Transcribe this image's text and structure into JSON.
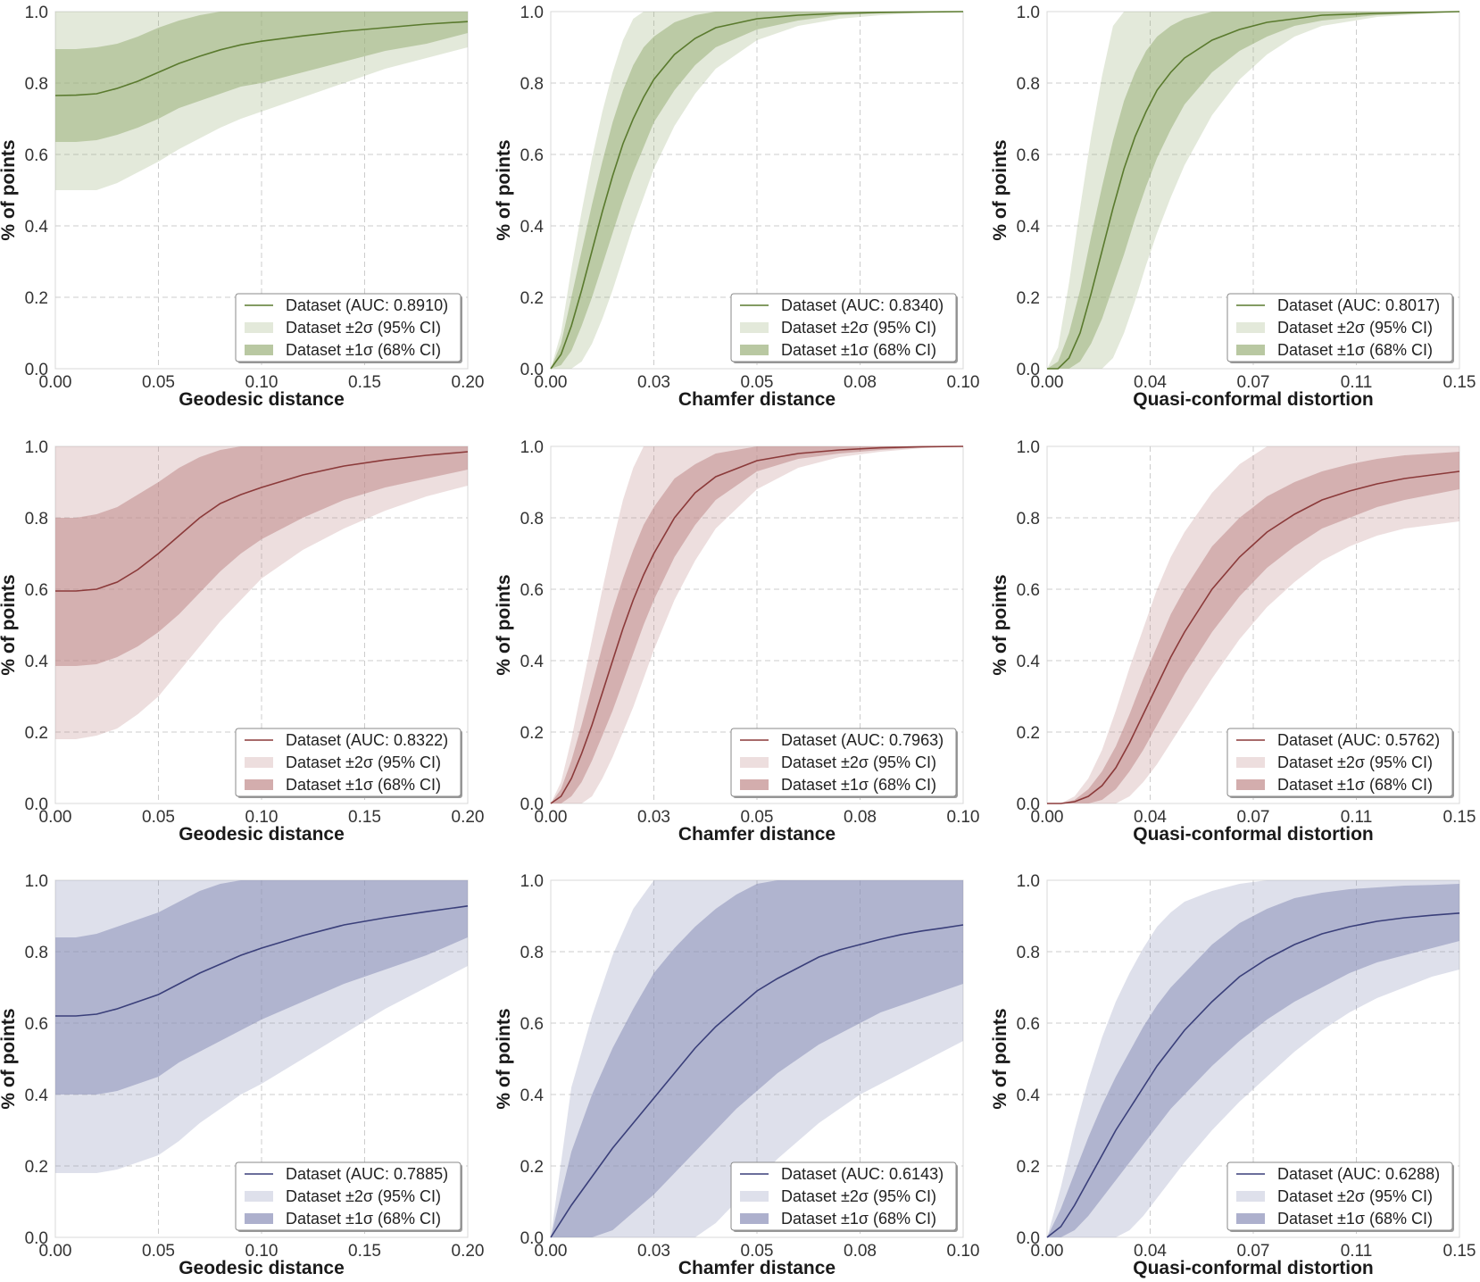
{
  "figure": {
    "ylabel": "% of points",
    "legend_labels": [
      "Dataset (AUC: {auc})",
      "Dataset ±2σ (95% CI)",
      "Dataset ±1σ (68% CI)"
    ],
    "legend_position": "lower-right",
    "grid": true
  },
  "rows": [
    {
      "color": "#5a7a2e",
      "band_color": "#9bb07a"
    },
    {
      "color": "#8b3a3a",
      "band_color": "#c08a8a"
    },
    {
      "color": "#3a3f7a",
      "band_color": "#8a8fb8"
    }
  ],
  "chart_data": [
    {
      "type": "area",
      "row": 0,
      "col": 0,
      "xlabel": "Geodesic distance",
      "xlim": [
        0,
        0.2
      ],
      "ylim": [
        0,
        1
      ],
      "xticks": [
        "0.00",
        "0.05",
        "0.10",
        "0.15",
        "0.20"
      ],
      "yticks": [
        "0.0",
        "0.2",
        "0.4",
        "0.6",
        "0.8",
        "1.0"
      ],
      "auc": "0.8910",
      "x": [
        0,
        0.01,
        0.02,
        0.03,
        0.04,
        0.05,
        0.06,
        0.07,
        0.08,
        0.09,
        0.1,
        0.12,
        0.14,
        0.16,
        0.18,
        0.2
      ],
      "mean": [
        0.765,
        0.766,
        0.77,
        0.785,
        0.805,
        0.83,
        0.855,
        0.875,
        0.893,
        0.907,
        0.917,
        0.932,
        0.945,
        0.955,
        0.965,
        0.972
      ],
      "sd1_lower": [
        0.635,
        0.635,
        0.64,
        0.655,
        0.675,
        0.7,
        0.73,
        0.75,
        0.77,
        0.79,
        0.8,
        0.83,
        0.86,
        0.89,
        0.91,
        0.94
      ],
      "sd1_upper": [
        0.895,
        0.895,
        0.9,
        0.91,
        0.93,
        0.955,
        0.975,
        0.99,
        1.0,
        1.0,
        1.0,
        1.0,
        1.0,
        1.0,
        1.0,
        1.0
      ],
      "sd2_lower": [
        0.5,
        0.5,
        0.5,
        0.52,
        0.55,
        0.58,
        0.615,
        0.645,
        0.675,
        0.7,
        0.72,
        0.76,
        0.8,
        0.84,
        0.87,
        0.9
      ],
      "sd2_upper": [
        1,
        1,
        1,
        1,
        1,
        1,
        1,
        1,
        1,
        1,
        1,
        1,
        1,
        1,
        1,
        1
      ]
    },
    {
      "type": "area",
      "row": 0,
      "col": 1,
      "xlabel": "Chamfer distance",
      "xlim": [
        0,
        0.1
      ],
      "ylim": [
        0,
        1
      ],
      "xticks": [
        "0.00",
        "0.03",
        "0.05",
        "0.08",
        "0.10"
      ],
      "yticks": [
        "0.0",
        "0.2",
        "0.4",
        "0.6",
        "0.8",
        "1.0"
      ],
      "auc": "0.8340",
      "x": [
        0,
        0.0025,
        0.005,
        0.0075,
        0.01,
        0.0125,
        0.015,
        0.0175,
        0.02,
        0.0225,
        0.025,
        0.03,
        0.035,
        0.04,
        0.05,
        0.06,
        0.07,
        0.08,
        0.09,
        0.1
      ],
      "mean": [
        0,
        0.04,
        0.12,
        0.22,
        0.33,
        0.44,
        0.54,
        0.63,
        0.7,
        0.76,
        0.81,
        0.88,
        0.925,
        0.955,
        0.98,
        0.99,
        0.995,
        0.998,
        0.999,
        1.0
      ],
      "sd1_lower": [
        0,
        0.01,
        0.05,
        0.12,
        0.2,
        0.29,
        0.38,
        0.47,
        0.55,
        0.62,
        0.69,
        0.78,
        0.85,
        0.9,
        0.95,
        0.975,
        0.99,
        0.995,
        0.998,
        1.0
      ],
      "sd1_upper": [
        0,
        0.07,
        0.2,
        0.33,
        0.46,
        0.58,
        0.69,
        0.78,
        0.85,
        0.9,
        0.93,
        0.97,
        0.99,
        1.0,
        1.0,
        1.0,
        1.0,
        1.0,
        1.0,
        1.0
      ],
      "sd2_lower": [
        0,
        0.0,
        0.0,
        0.02,
        0.07,
        0.14,
        0.22,
        0.31,
        0.4,
        0.48,
        0.56,
        0.68,
        0.77,
        0.84,
        0.92,
        0.96,
        0.98,
        0.99,
        0.997,
        1.0
      ],
      "sd2_upper": [
        0,
        0.1,
        0.28,
        0.44,
        0.59,
        0.72,
        0.83,
        0.92,
        0.98,
        1.0,
        1.0,
        1.0,
        1.0,
        1.0,
        1.0,
        1.0,
        1.0,
        1.0,
        1.0,
        1.0
      ]
    },
    {
      "type": "area",
      "row": 0,
      "col": 2,
      "xlabel": "Quasi-conformal distortion",
      "xlim": [
        0,
        0.15
      ],
      "ylim": [
        0,
        1
      ],
      "xticks": [
        "0.00",
        "0.04",
        "0.07",
        "0.11",
        "0.15"
      ],
      "yticks": [
        "0.0",
        "0.2",
        "0.4",
        "0.6",
        "0.8",
        "1.0"
      ],
      "auc": "0.8017",
      "x": [
        0,
        0.004,
        0.008,
        0.012,
        0.016,
        0.02,
        0.024,
        0.028,
        0.032,
        0.036,
        0.04,
        0.045,
        0.05,
        0.06,
        0.07,
        0.08,
        0.09,
        0.1,
        0.12,
        0.15
      ],
      "mean": [
        0,
        0.0,
        0.03,
        0.1,
        0.21,
        0.33,
        0.45,
        0.56,
        0.65,
        0.72,
        0.78,
        0.83,
        0.87,
        0.92,
        0.95,
        0.97,
        0.98,
        0.99,
        0.995,
        1.0
      ],
      "sd1_lower": [
        0,
        0,
        0,
        0.02,
        0.07,
        0.14,
        0.23,
        0.32,
        0.42,
        0.51,
        0.59,
        0.67,
        0.74,
        0.83,
        0.89,
        0.93,
        0.96,
        0.975,
        0.99,
        1.0
      ],
      "sd1_upper": [
        0,
        0.02,
        0.1,
        0.22,
        0.37,
        0.51,
        0.64,
        0.75,
        0.83,
        0.89,
        0.93,
        0.96,
        0.98,
        1.0,
        1.0,
        1.0,
        1.0,
        1.0,
        1.0,
        1.0
      ],
      "sd2_lower": [
        0,
        0,
        0,
        0,
        0,
        0,
        0.03,
        0.1,
        0.19,
        0.29,
        0.38,
        0.48,
        0.57,
        0.71,
        0.81,
        0.88,
        0.93,
        0.96,
        0.985,
        1.0
      ],
      "sd2_upper": [
        0,
        0.06,
        0.24,
        0.45,
        0.65,
        0.82,
        0.96,
        1.0,
        1.0,
        1.0,
        1.0,
        1.0,
        1.0,
        1.0,
        1.0,
        1.0,
        1.0,
        1.0,
        1.0,
        1.0
      ]
    },
    {
      "type": "area",
      "row": 1,
      "col": 0,
      "xlabel": "Geodesic distance",
      "xlim": [
        0,
        0.2
      ],
      "ylim": [
        0,
        1
      ],
      "xticks": [
        "0.00",
        "0.05",
        "0.10",
        "0.15",
        "0.20"
      ],
      "yticks": [
        "0.0",
        "0.2",
        "0.4",
        "0.6",
        "0.8",
        "1.0"
      ],
      "auc": "0.8322",
      "x": [
        0,
        0.01,
        0.02,
        0.03,
        0.04,
        0.05,
        0.06,
        0.07,
        0.08,
        0.09,
        0.1,
        0.12,
        0.14,
        0.16,
        0.18,
        0.2
      ],
      "mean": [
        0.595,
        0.595,
        0.6,
        0.62,
        0.655,
        0.7,
        0.75,
        0.8,
        0.84,
        0.865,
        0.885,
        0.92,
        0.945,
        0.962,
        0.975,
        0.985
      ],
      "sd1_lower": [
        0.385,
        0.385,
        0.39,
        0.41,
        0.44,
        0.48,
        0.53,
        0.59,
        0.65,
        0.7,
        0.74,
        0.8,
        0.85,
        0.885,
        0.91,
        0.935
      ],
      "sd1_upper": [
        0.8,
        0.8,
        0.81,
        0.83,
        0.865,
        0.9,
        0.94,
        0.97,
        0.99,
        1.0,
        1.0,
        1.0,
        1.0,
        1.0,
        1.0,
        1.0
      ],
      "sd2_lower": [
        0.18,
        0.18,
        0.19,
        0.21,
        0.25,
        0.3,
        0.37,
        0.44,
        0.51,
        0.57,
        0.63,
        0.71,
        0.77,
        0.82,
        0.86,
        0.89
      ],
      "sd2_upper": [
        1,
        1,
        1,
        1,
        1,
        1,
        1,
        1,
        1,
        1,
        1,
        1,
        1,
        1,
        1,
        1
      ]
    },
    {
      "type": "area",
      "row": 1,
      "col": 1,
      "xlabel": "Chamfer distance",
      "xlim": [
        0,
        0.1
      ],
      "ylim": [
        0,
        1
      ],
      "xticks": [
        "0.00",
        "0.03",
        "0.05",
        "0.08",
        "0.10"
      ],
      "yticks": [
        "0.0",
        "0.2",
        "0.4",
        "0.6",
        "0.8",
        "1.0"
      ],
      "auc": "0.7963",
      "x": [
        0,
        0.0025,
        0.005,
        0.0075,
        0.01,
        0.0125,
        0.015,
        0.0175,
        0.02,
        0.0225,
        0.025,
        0.03,
        0.035,
        0.04,
        0.05,
        0.06,
        0.07,
        0.08,
        0.09,
        0.1
      ],
      "mean": [
        0,
        0.02,
        0.07,
        0.14,
        0.22,
        0.31,
        0.4,
        0.49,
        0.57,
        0.64,
        0.7,
        0.8,
        0.87,
        0.915,
        0.96,
        0.98,
        0.99,
        0.996,
        0.999,
        1.0
      ],
      "sd1_lower": [
        0,
        0.0,
        0.02,
        0.06,
        0.12,
        0.19,
        0.26,
        0.34,
        0.42,
        0.5,
        0.57,
        0.69,
        0.78,
        0.85,
        0.93,
        0.965,
        0.98,
        0.99,
        0.997,
        1.0
      ],
      "sd1_upper": [
        0,
        0.04,
        0.12,
        0.22,
        0.33,
        0.44,
        0.54,
        0.63,
        0.71,
        0.78,
        0.83,
        0.91,
        0.95,
        0.98,
        1.0,
        1.0,
        1.0,
        1.0,
        1.0,
        1.0
      ],
      "sd2_lower": [
        0,
        0,
        0,
        0,
        0.02,
        0.07,
        0.13,
        0.2,
        0.27,
        0.35,
        0.43,
        0.57,
        0.68,
        0.77,
        0.88,
        0.94,
        0.97,
        0.985,
        0.995,
        1.0
      ],
      "sd2_upper": [
        0,
        0.06,
        0.18,
        0.32,
        0.46,
        0.6,
        0.73,
        0.85,
        0.94,
        1.0,
        1.0,
        1.0,
        1.0,
        1.0,
        1.0,
        1.0,
        1.0,
        1.0,
        1.0,
        1.0
      ]
    },
    {
      "type": "area",
      "row": 1,
      "col": 2,
      "xlabel": "Quasi-conformal distortion",
      "xlim": [
        0,
        0.15
      ],
      "ylim": [
        0,
        1
      ],
      "xticks": [
        "0.00",
        "0.04",
        "0.07",
        "0.11",
        "0.15"
      ],
      "yticks": [
        "0.0",
        "0.2",
        "0.4",
        "0.6",
        "0.8",
        "1.0"
      ],
      "auc": "0.5762",
      "x": [
        0,
        0.005,
        0.01,
        0.015,
        0.02,
        0.025,
        0.03,
        0.035,
        0.04,
        0.045,
        0.05,
        0.06,
        0.07,
        0.08,
        0.09,
        0.1,
        0.11,
        0.12,
        0.13,
        0.14,
        0.15
      ],
      "mean": [
        0,
        0,
        0.005,
        0.02,
        0.05,
        0.1,
        0.17,
        0.25,
        0.33,
        0.41,
        0.48,
        0.6,
        0.69,
        0.76,
        0.81,
        0.85,
        0.875,
        0.895,
        0.91,
        0.92,
        0.93
      ],
      "sd1_lower": [
        0,
        0,
        0,
        0,
        0.01,
        0.04,
        0.09,
        0.15,
        0.22,
        0.29,
        0.36,
        0.48,
        0.58,
        0.66,
        0.72,
        0.77,
        0.8,
        0.83,
        0.85,
        0.865,
        0.88
      ],
      "sd1_upper": [
        0,
        0,
        0.01,
        0.04,
        0.09,
        0.16,
        0.25,
        0.35,
        0.44,
        0.53,
        0.6,
        0.72,
        0.8,
        0.86,
        0.9,
        0.93,
        0.95,
        0.965,
        0.975,
        0.98,
        0.985
      ],
      "sd2_lower": [
        0,
        0,
        0,
        0,
        0,
        0,
        0.02,
        0.06,
        0.11,
        0.17,
        0.23,
        0.35,
        0.46,
        0.55,
        0.62,
        0.68,
        0.72,
        0.75,
        0.77,
        0.78,
        0.79
      ],
      "sd2_upper": [
        0,
        0,
        0.02,
        0.07,
        0.15,
        0.26,
        0.38,
        0.49,
        0.6,
        0.69,
        0.76,
        0.87,
        0.95,
        1.0,
        1.0,
        1.0,
        1.0,
        1.0,
        1.0,
        1.0,
        1.0
      ]
    },
    {
      "type": "area",
      "row": 2,
      "col": 0,
      "xlabel": "Geodesic distance",
      "xlim": [
        0,
        0.2
      ],
      "ylim": [
        0,
        1
      ],
      "xticks": [
        "0.00",
        "0.05",
        "0.10",
        "0.15",
        "0.20"
      ],
      "yticks": [
        "0.0",
        "0.2",
        "0.4",
        "0.6",
        "0.8",
        "1.0"
      ],
      "auc": "0.7885",
      "x": [
        0,
        0.01,
        0.02,
        0.03,
        0.04,
        0.05,
        0.06,
        0.07,
        0.08,
        0.09,
        0.1,
        0.12,
        0.14,
        0.16,
        0.18,
        0.2
      ],
      "mean": [
        0.62,
        0.62,
        0.625,
        0.64,
        0.66,
        0.68,
        0.71,
        0.74,
        0.765,
        0.79,
        0.81,
        0.845,
        0.875,
        0.895,
        0.912,
        0.928
      ],
      "sd1_lower": [
        0.4,
        0.4,
        0.4,
        0.41,
        0.43,
        0.45,
        0.49,
        0.52,
        0.55,
        0.58,
        0.61,
        0.66,
        0.71,
        0.75,
        0.79,
        0.84
      ],
      "sd1_upper": [
        0.84,
        0.84,
        0.85,
        0.87,
        0.89,
        0.91,
        0.94,
        0.97,
        0.99,
        1.0,
        1.0,
        1.0,
        1.0,
        1.0,
        1.0,
        1.0
      ],
      "sd2_lower": [
        0.18,
        0.18,
        0.18,
        0.19,
        0.21,
        0.23,
        0.27,
        0.32,
        0.36,
        0.4,
        0.43,
        0.5,
        0.57,
        0.64,
        0.7,
        0.76
      ],
      "sd2_upper": [
        1,
        1,
        1,
        1,
        1,
        1,
        1,
        1,
        1,
        1,
        1,
        1,
        1,
        1,
        1,
        1
      ]
    },
    {
      "type": "area",
      "row": 2,
      "col": 1,
      "xlabel": "Chamfer distance",
      "xlim": [
        0,
        0.1
      ],
      "ylim": [
        0,
        1
      ],
      "xticks": [
        "0.00",
        "0.03",
        "0.05",
        "0.08",
        "0.10"
      ],
      "yticks": [
        "0.0",
        "0.2",
        "0.4",
        "0.6",
        "0.8",
        "1.0"
      ],
      "auc": "0.6143",
      "x": [
        0,
        0.005,
        0.01,
        0.015,
        0.02,
        0.025,
        0.03,
        0.035,
        0.04,
        0.045,
        0.05,
        0.055,
        0.06,
        0.065,
        0.07,
        0.075,
        0.08,
        0.085,
        0.09,
        0.095,
        0.1
      ],
      "mean": [
        0,
        0.09,
        0.17,
        0.25,
        0.32,
        0.39,
        0.46,
        0.53,
        0.59,
        0.64,
        0.69,
        0.725,
        0.755,
        0.785,
        0.805,
        0.82,
        0.835,
        0.848,
        0.858,
        0.866,
        0.875
      ],
      "sd1_lower": [
        0,
        0,
        0,
        0.02,
        0.07,
        0.12,
        0.18,
        0.24,
        0.3,
        0.36,
        0.41,
        0.46,
        0.5,
        0.54,
        0.57,
        0.6,
        0.63,
        0.65,
        0.67,
        0.69,
        0.71
      ],
      "sd1_upper": [
        0,
        0.24,
        0.4,
        0.53,
        0.64,
        0.74,
        0.81,
        0.87,
        0.92,
        0.96,
        0.99,
        1.0,
        1.0,
        1.0,
        1.0,
        1.0,
        1.0,
        1.0,
        1.0,
        1.0,
        1.0
      ],
      "sd2_lower": [
        0,
        0,
        0,
        0,
        0,
        0,
        0,
        0,
        0.04,
        0.1,
        0.16,
        0.22,
        0.27,
        0.32,
        0.36,
        0.4,
        0.43,
        0.46,
        0.49,
        0.52,
        0.55
      ],
      "sd2_upper": [
        0,
        0.42,
        0.62,
        0.79,
        0.92,
        1.0,
        1.0,
        1.0,
        1.0,
        1.0,
        1.0,
        1.0,
        1.0,
        1.0,
        1.0,
        1.0,
        1.0,
        1.0,
        1.0,
        1.0,
        1.0
      ]
    },
    {
      "type": "area",
      "row": 2,
      "col": 2,
      "xlabel": "Quasi-conformal distortion",
      "xlim": [
        0,
        0.15
      ],
      "ylim": [
        0,
        1
      ],
      "xticks": [
        "0.00",
        "0.04",
        "0.07",
        "0.11",
        "0.15"
      ],
      "yticks": [
        "0.0",
        "0.2",
        "0.4",
        "0.6",
        "0.8",
        "1.0"
      ],
      "auc": "0.6288",
      "x": [
        0,
        0.005,
        0.01,
        0.015,
        0.02,
        0.025,
        0.03,
        0.035,
        0.04,
        0.045,
        0.05,
        0.06,
        0.07,
        0.08,
        0.09,
        0.1,
        0.11,
        0.12,
        0.13,
        0.14,
        0.15
      ],
      "mean": [
        0,
        0.03,
        0.09,
        0.16,
        0.23,
        0.3,
        0.36,
        0.42,
        0.48,
        0.53,
        0.58,
        0.66,
        0.73,
        0.78,
        0.82,
        0.85,
        0.87,
        0.885,
        0.895,
        0.902,
        0.908
      ],
      "sd1_lower": [
        0,
        0,
        0.02,
        0.06,
        0.11,
        0.16,
        0.21,
        0.26,
        0.31,
        0.36,
        0.4,
        0.48,
        0.55,
        0.61,
        0.66,
        0.7,
        0.74,
        0.77,
        0.79,
        0.81,
        0.83
      ],
      "sd1_upper": [
        0,
        0.08,
        0.18,
        0.28,
        0.37,
        0.45,
        0.52,
        0.59,
        0.65,
        0.7,
        0.74,
        0.82,
        0.88,
        0.92,
        0.95,
        0.965,
        0.975,
        0.98,
        0.985,
        0.987,
        0.99
      ],
      "sd2_lower": [
        0,
        0,
        0,
        0,
        0,
        0,
        0.02,
        0.06,
        0.11,
        0.16,
        0.21,
        0.3,
        0.38,
        0.45,
        0.52,
        0.58,
        0.63,
        0.67,
        0.7,
        0.73,
        0.75
      ],
      "sd2_upper": [
        0,
        0.14,
        0.3,
        0.44,
        0.56,
        0.66,
        0.74,
        0.81,
        0.87,
        0.91,
        0.94,
        0.97,
        0.99,
        1.0,
        1.0,
        1.0,
        1.0,
        1.0,
        1.0,
        1.0,
        1.0
      ]
    }
  ]
}
